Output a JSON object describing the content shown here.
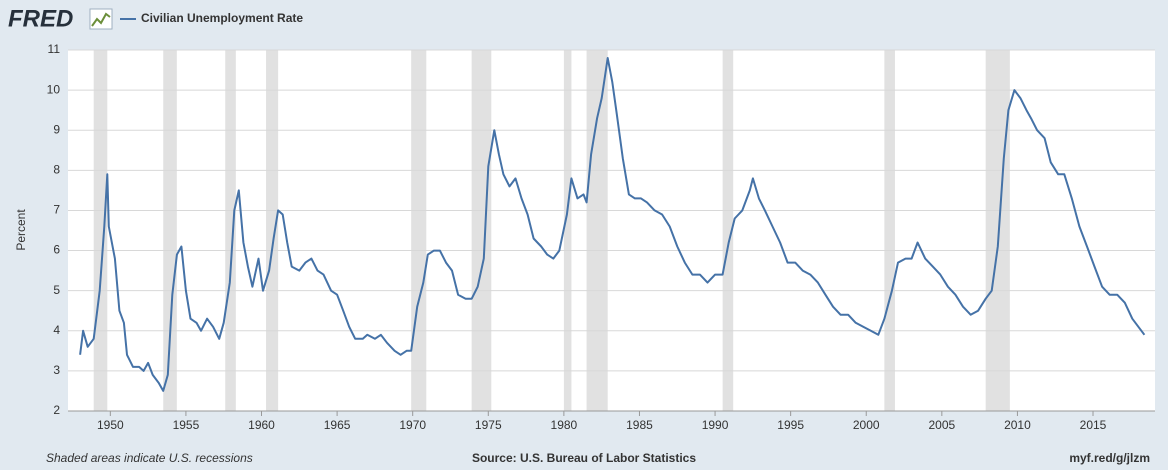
{
  "chart_data": {
    "type": "line",
    "logo": "FRED",
    "x_label": null,
    "y_label": "Percent",
    "footer_left": "Shaded areas indicate U.S. recessions",
    "source": "Source: U.S. Bureau of Labor Statistics",
    "short_url": "myf.red/g/jlzm",
    "xlim": [
      1947.2,
      2019.1
    ],
    "xticks": [
      1950,
      1955,
      1960,
      1965,
      1970,
      1975,
      1980,
      1985,
      1990,
      1995,
      2000,
      2005,
      2010,
      2015
    ],
    "ylim": [
      2,
      11
    ],
    "yticks": [
      2,
      3,
      4,
      5,
      6,
      7,
      8,
      9,
      10,
      11
    ],
    "grid": true,
    "recessions": [
      [
        1948.9,
        1949.8
      ],
      [
        1953.5,
        1954.4
      ],
      [
        1957.6,
        1958.3
      ],
      [
        1960.3,
        1961.1
      ],
      [
        1969.9,
        1970.9
      ],
      [
        1973.9,
        1975.2
      ],
      [
        1980.0,
        1980.5
      ],
      [
        1981.5,
        1982.9
      ],
      [
        1990.5,
        1991.2
      ],
      [
        2001.2,
        2001.9
      ],
      [
        2007.9,
        2009.5
      ]
    ],
    "x": [
      1948.0,
      1948.2,
      1948.5,
      1948.9,
      1949.3,
      1949.6,
      1949.8,
      1949.9,
      1950.3,
      1950.6,
      1950.9,
      1951.1,
      1951.5,
      1951.9,
      1952.2,
      1952.5,
      1952.8,
      1953.2,
      1953.5,
      1953.8,
      1954.1,
      1954.4,
      1954.7,
      1955.0,
      1955.3,
      1955.7,
      1956.0,
      1956.4,
      1956.8,
      1957.2,
      1957.5,
      1957.9,
      1958.2,
      1958.5,
      1958.8,
      1959.1,
      1959.4,
      1959.8,
      1960.1,
      1960.5,
      1960.8,
      1961.1,
      1961.4,
      1961.7,
      1962.0,
      1962.5,
      1962.9,
      1963.3,
      1963.7,
      1964.1,
      1964.6,
      1965.0,
      1965.4,
      1965.8,
      1966.2,
      1966.7,
      1967.0,
      1967.5,
      1967.9,
      1968.3,
      1968.8,
      1969.2,
      1969.6,
      1969.9,
      1970.3,
      1970.7,
      1971.0,
      1971.4,
      1971.8,
      1972.2,
      1972.6,
      1973.0,
      1973.5,
      1973.9,
      1974.3,
      1974.7,
      1975.0,
      1975.4,
      1975.7,
      1976.0,
      1976.4,
      1976.8,
      1977.2,
      1977.6,
      1978.0,
      1978.5,
      1978.9,
      1979.3,
      1979.7,
      1980.2,
      1980.5,
      1980.9,
      1981.3,
      1981.5,
      1981.8,
      1982.2,
      1982.5,
      1982.9,
      1983.2,
      1983.5,
      1983.9,
      1984.3,
      1984.7,
      1985.1,
      1985.5,
      1986.0,
      1986.5,
      1987.0,
      1987.5,
      1988.0,
      1988.5,
      1989.0,
      1989.5,
      1990.0,
      1990.5,
      1990.9,
      1991.3,
      1991.8,
      1992.3,
      1992.5,
      1992.9,
      1993.3,
      1993.8,
      1994.3,
      1994.8,
      1995.3,
      1995.8,
      1996.3,
      1996.8,
      1997.3,
      1997.8,
      1998.3,
      1998.8,
      1999.3,
      1999.8,
      2000.3,
      2000.8,
      2001.2,
      2001.7,
      2002.1,
      2002.6,
      2003.0,
      2003.4,
      2003.9,
      2004.4,
      2004.9,
      2005.4,
      2005.9,
      2006.4,
      2006.9,
      2007.4,
      2007.9,
      2008.3,
      2008.7,
      2009.1,
      2009.4,
      2009.8,
      2010.2,
      2010.6,
      2010.9,
      2011.3,
      2011.8,
      2012.2,
      2012.7,
      2013.1,
      2013.6,
      2014.1,
      2014.6,
      2015.1,
      2015.6,
      2016.1,
      2016.6,
      2017.1,
      2017.6,
      2018.0,
      2018.4
    ],
    "series": [
      {
        "name": "Civilian Unemployment Rate",
        "color": "#4572a7",
        "values": [
          3.4,
          4.0,
          3.6,
          3.8,
          5.0,
          6.6,
          7.9,
          6.6,
          5.8,
          4.5,
          4.2,
          3.4,
          3.1,
          3.1,
          3.0,
          3.2,
          2.9,
          2.7,
          2.5,
          2.9,
          4.9,
          5.9,
          6.1,
          5.0,
          4.3,
          4.2,
          4.0,
          4.3,
          4.1,
          3.8,
          4.2,
          5.2,
          7.0,
          7.5,
          6.2,
          5.6,
          5.1,
          5.8,
          5.0,
          5.5,
          6.3,
          7.0,
          6.9,
          6.2,
          5.6,
          5.5,
          5.7,
          5.8,
          5.5,
          5.4,
          5.0,
          4.9,
          4.5,
          4.1,
          3.8,
          3.8,
          3.9,
          3.8,
          3.9,
          3.7,
          3.5,
          3.4,
          3.5,
          3.5,
          4.6,
          5.2,
          5.9,
          6.0,
          6.0,
          5.7,
          5.5,
          4.9,
          4.8,
          4.8,
          5.1,
          5.8,
          8.1,
          9.0,
          8.4,
          7.9,
          7.6,
          7.8,
          7.3,
          6.9,
          6.3,
          6.1,
          5.9,
          5.8,
          6.0,
          6.9,
          7.8,
          7.3,
          7.4,
          7.2,
          8.4,
          9.3,
          9.8,
          10.8,
          10.2,
          9.4,
          8.3,
          7.4,
          7.3,
          7.3,
          7.2,
          7.0,
          6.9,
          6.6,
          6.1,
          5.7,
          5.4,
          5.4,
          5.2,
          5.4,
          5.4,
          6.2,
          6.8,
          7.0,
          7.5,
          7.8,
          7.3,
          7.0,
          6.6,
          6.2,
          5.7,
          5.7,
          5.5,
          5.4,
          5.2,
          4.9,
          4.6,
          4.4,
          4.4,
          4.2,
          4.1,
          4.0,
          3.9,
          4.3,
          5.0,
          5.7,
          5.8,
          5.8,
          6.2,
          5.8,
          5.6,
          5.4,
          5.1,
          4.9,
          4.6,
          4.4,
          4.5,
          4.8,
          5.0,
          6.1,
          8.3,
          9.5,
          10.0,
          9.8,
          9.5,
          9.3,
          9.0,
          8.8,
          8.2,
          7.9,
          7.9,
          7.3,
          6.6,
          6.1,
          5.6,
          5.1,
          4.9,
          4.9,
          4.7,
          4.3,
          4.1,
          3.9
        ]
      }
    ]
  }
}
